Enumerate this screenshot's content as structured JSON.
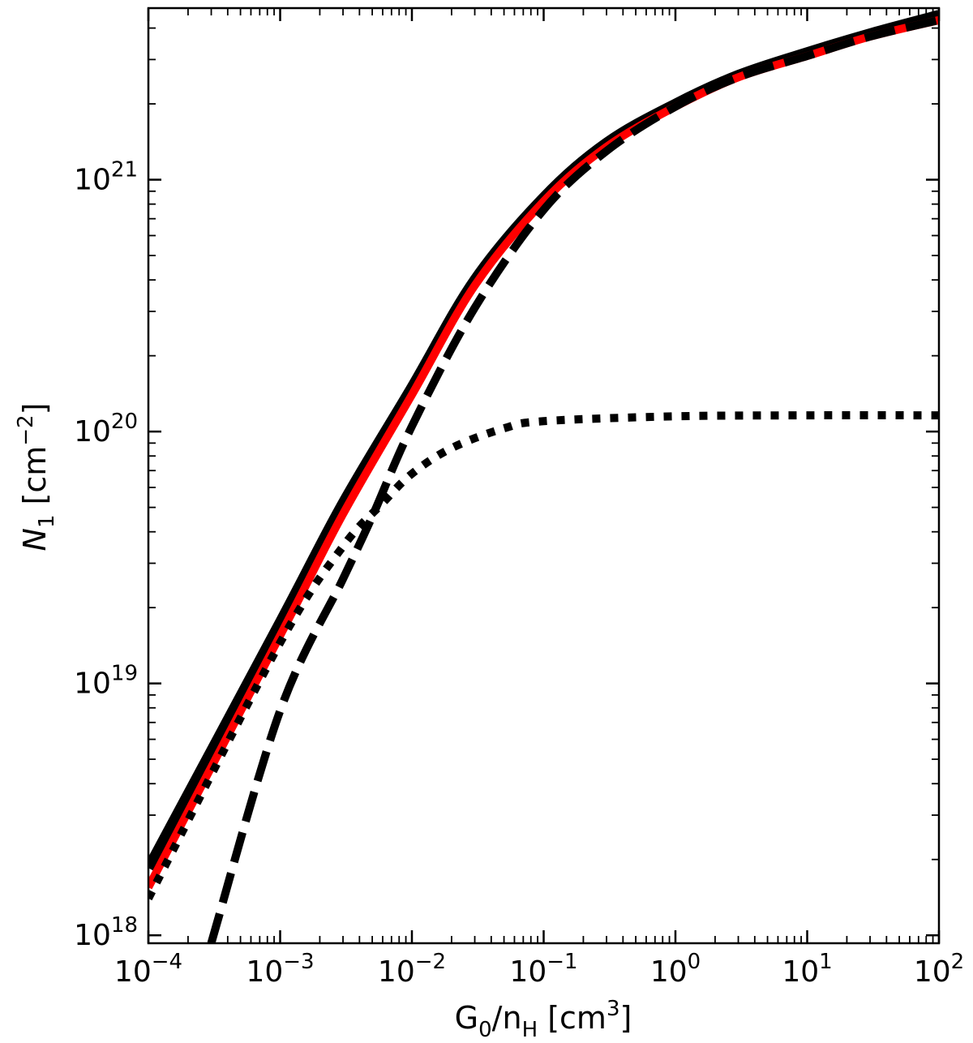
{
  "chart_data": {
    "type": "line",
    "xlabel": {
      "main": "G",
      "sub1": "0",
      "mid": "/n",
      "sub2": "H",
      "unit_open": " [cm",
      "sup": "3",
      "unit_close": "]"
    },
    "ylabel": {
      "main": "N",
      "sub": "1",
      "unit_open": " [cm",
      "sup": "−2",
      "unit_close": "]"
    },
    "x_scale": "log",
    "y_scale": "log",
    "xlim": [
      0.0001,
      100
    ],
    "ylim": [
      9.3e+17,
      4.8e+21
    ],
    "x_ticks": [
      {
        "value": 0.0001,
        "base": "10",
        "exp": "−4"
      },
      {
        "value": 0.001,
        "base": "10",
        "exp": "−3"
      },
      {
        "value": 0.01,
        "base": "10",
        "exp": "−2"
      },
      {
        "value": 0.1,
        "base": "10",
        "exp": "−1"
      },
      {
        "value": 1,
        "base": "10",
        "exp": "0"
      },
      {
        "value": 10,
        "base": "10",
        "exp": "1"
      },
      {
        "value": 100,
        "base": "10",
        "exp": "2"
      }
    ],
    "y_ticks": [
      {
        "value": 1e+18,
        "base": "10",
        "exp": "18"
      },
      {
        "value": 1e+19,
        "base": "10",
        "exp": "19"
      },
      {
        "value": 1e+20,
        "base": "10",
        "exp": "20"
      },
      {
        "value": 1e+21,
        "base": "10",
        "exp": "21"
      }
    ],
    "grid": false,
    "legend": "none",
    "series": [
      {
        "style": "solid",
        "color": "#000000",
        "x": [
          0.0001,
          0.001,
          0.003,
          0.01,
          0.03,
          0.1,
          0.3,
          1,
          3,
          10,
          30,
          100
        ],
        "y": [
          1.85e+18,
          1.75e+19,
          5.2e+19,
          1.5e+20,
          4e+20,
          8.5e+20,
          1.4e+21,
          2e+21,
          2.6e+21,
          3.2e+21,
          3.8e+21,
          4.5e+21
        ]
      },
      {
        "style": "solid",
        "color": "#ff0000",
        "x": [
          0.0001,
          0.001,
          0.003,
          0.01,
          0.03,
          0.1,
          0.3,
          1,
          3,
          10,
          30,
          100
        ],
        "y": [
          1.55e+18,
          1.55e+19,
          4.7e+19,
          1.4e+20,
          3.8e+20,
          8.2e+20,
          1.35e+21,
          1.95e+21,
          2.55e+21,
          3.1e+21,
          3.7e+21,
          4.3e+21
        ]
      },
      {
        "style": "dashed",
        "color": "#000000",
        "x": [
          0.0003,
          0.001,
          0.003,
          0.005,
          0.01,
          0.03,
          0.1,
          0.3,
          1,
          3,
          10,
          30,
          100
        ],
        "y": [
          9.3e+17,
          7.8e+18,
          2.6e+19,
          4.6e+19,
          1.05e+20,
          3.1e+20,
          7.6e+20,
          1.3e+21,
          1.95e+21,
          2.55e+21,
          3.1e+21,
          3.7e+21,
          4.3e+21
        ]
      },
      {
        "style": "dotted",
        "color": "#000000",
        "x": [
          0.0001,
          0.001,
          0.003,
          0.006,
          0.01,
          0.02,
          0.05,
          0.1,
          1,
          10,
          100
        ],
        "y": [
          1.4e+18,
          1.45e+19,
          3.5e+19,
          5.2e+19,
          6.8e+19,
          8.6e+19,
          1.03e+20,
          1.1e+20,
          1.15e+20,
          1.16e+20,
          1.16e+20
        ]
      }
    ]
  }
}
